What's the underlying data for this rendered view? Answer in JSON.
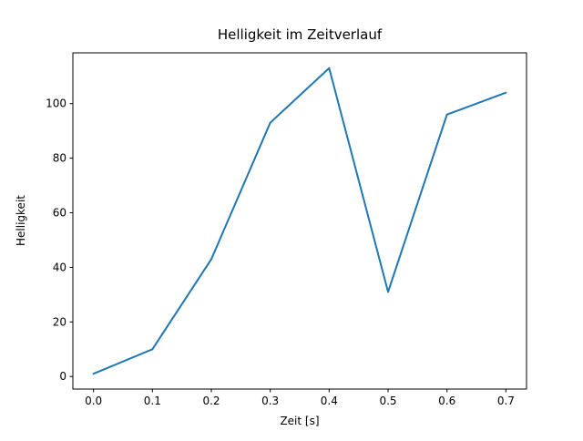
{
  "chart_data": {
    "type": "line",
    "title": "Helligkeit im Zeitverlauf",
    "xlabel": "Zeit [s]",
    "ylabel": "Helligkeit",
    "x": [
      0.0,
      0.1,
      0.2,
      0.3,
      0.4,
      0.5,
      0.6,
      0.7
    ],
    "y": [
      1,
      10,
      43,
      93,
      113,
      31,
      96,
      104
    ],
    "xticks": [
      0.0,
      0.1,
      0.2,
      0.3,
      0.4,
      0.5,
      0.6,
      0.7
    ],
    "xtick_labels": [
      "0.0",
      "0.1",
      "0.2",
      "0.3",
      "0.4",
      "0.5",
      "0.6",
      "0.7"
    ],
    "yticks": [
      0,
      20,
      40,
      60,
      80,
      100
    ],
    "ytick_labels": [
      "0",
      "20",
      "40",
      "60",
      "80",
      "100"
    ],
    "xlim": [
      -0.035,
      0.735
    ],
    "ylim": [
      -4.6,
      118.6
    ],
    "line_color": "#1f77b4",
    "line_width": 2,
    "axis_color": "#000000",
    "background": "#ffffff",
    "grid": false,
    "legend": null
  }
}
